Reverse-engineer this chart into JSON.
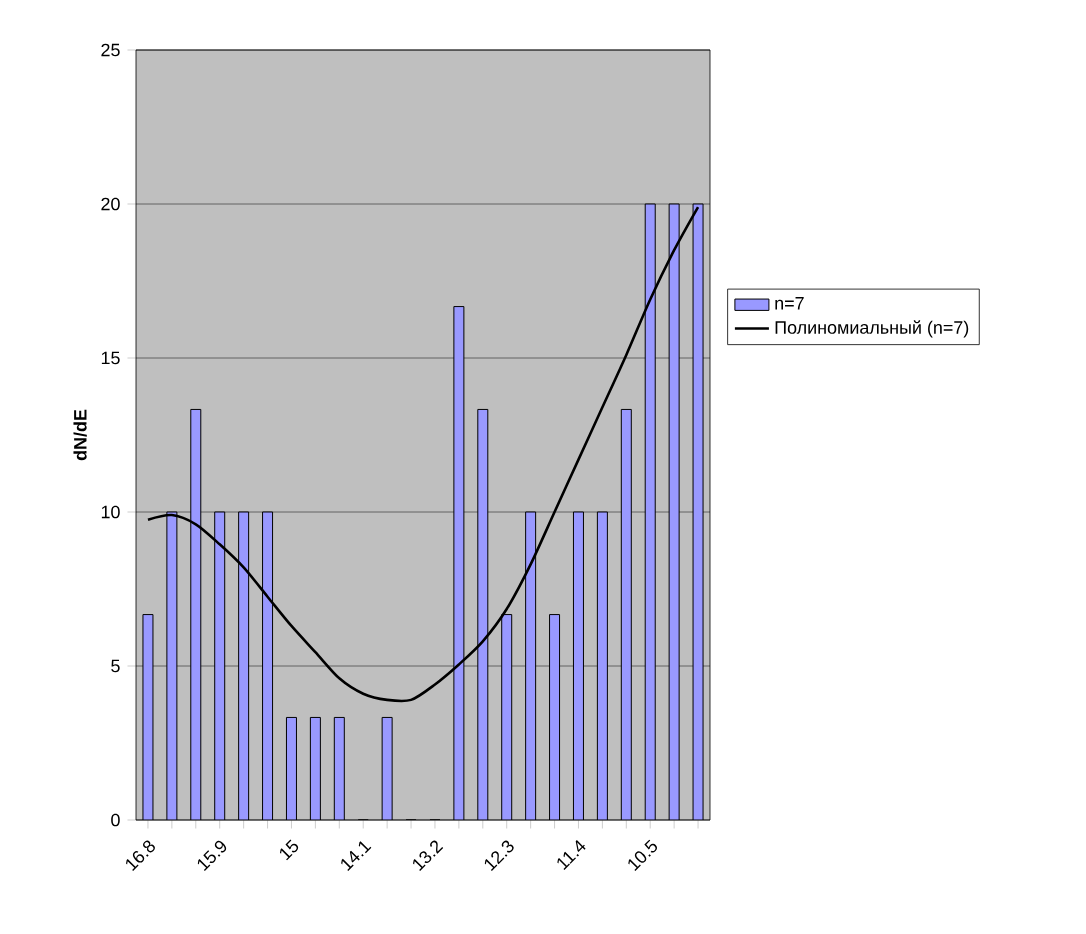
{
  "chart_data": {
    "type": "bar",
    "ylabel": "dN/dE",
    "categories": [
      "16.8",
      null,
      null,
      "15.9",
      null,
      null,
      "15",
      null,
      null,
      "14.1",
      null,
      null,
      "13.2",
      null,
      null,
      "12.3",
      null,
      null,
      "11.4",
      null,
      null,
      "10.5",
      null,
      null
    ],
    "series": [
      {
        "name": "n=7",
        "color": "#9999ff",
        "values": [
          6.67,
          10,
          13.33,
          10,
          10,
          10,
          3.33,
          3.33,
          3.33,
          0,
          3.33,
          0,
          0,
          16.67,
          13.33,
          6.67,
          10,
          6.67,
          10,
          10,
          13.33,
          20,
          20,
          20
        ]
      },
      {
        "name": "Полиномиальный (n=7)",
        "type": "line",
        "color": "#000000",
        "values": [
          9.75,
          9.9,
          9.6,
          8.95,
          8.2,
          7.25,
          6.3,
          5.45,
          4.6,
          4.1,
          3.9,
          3.9,
          4.4,
          5.05,
          5.8,
          6.85,
          8.3,
          10,
          11.7,
          13.4,
          15.1,
          16.9,
          18.5,
          19.9
        ]
      }
    ],
    "ylim": [
      0,
      25
    ],
    "yticks": [
      0,
      5,
      10,
      15,
      20,
      25
    ],
    "grid": "y",
    "legend": "right"
  }
}
